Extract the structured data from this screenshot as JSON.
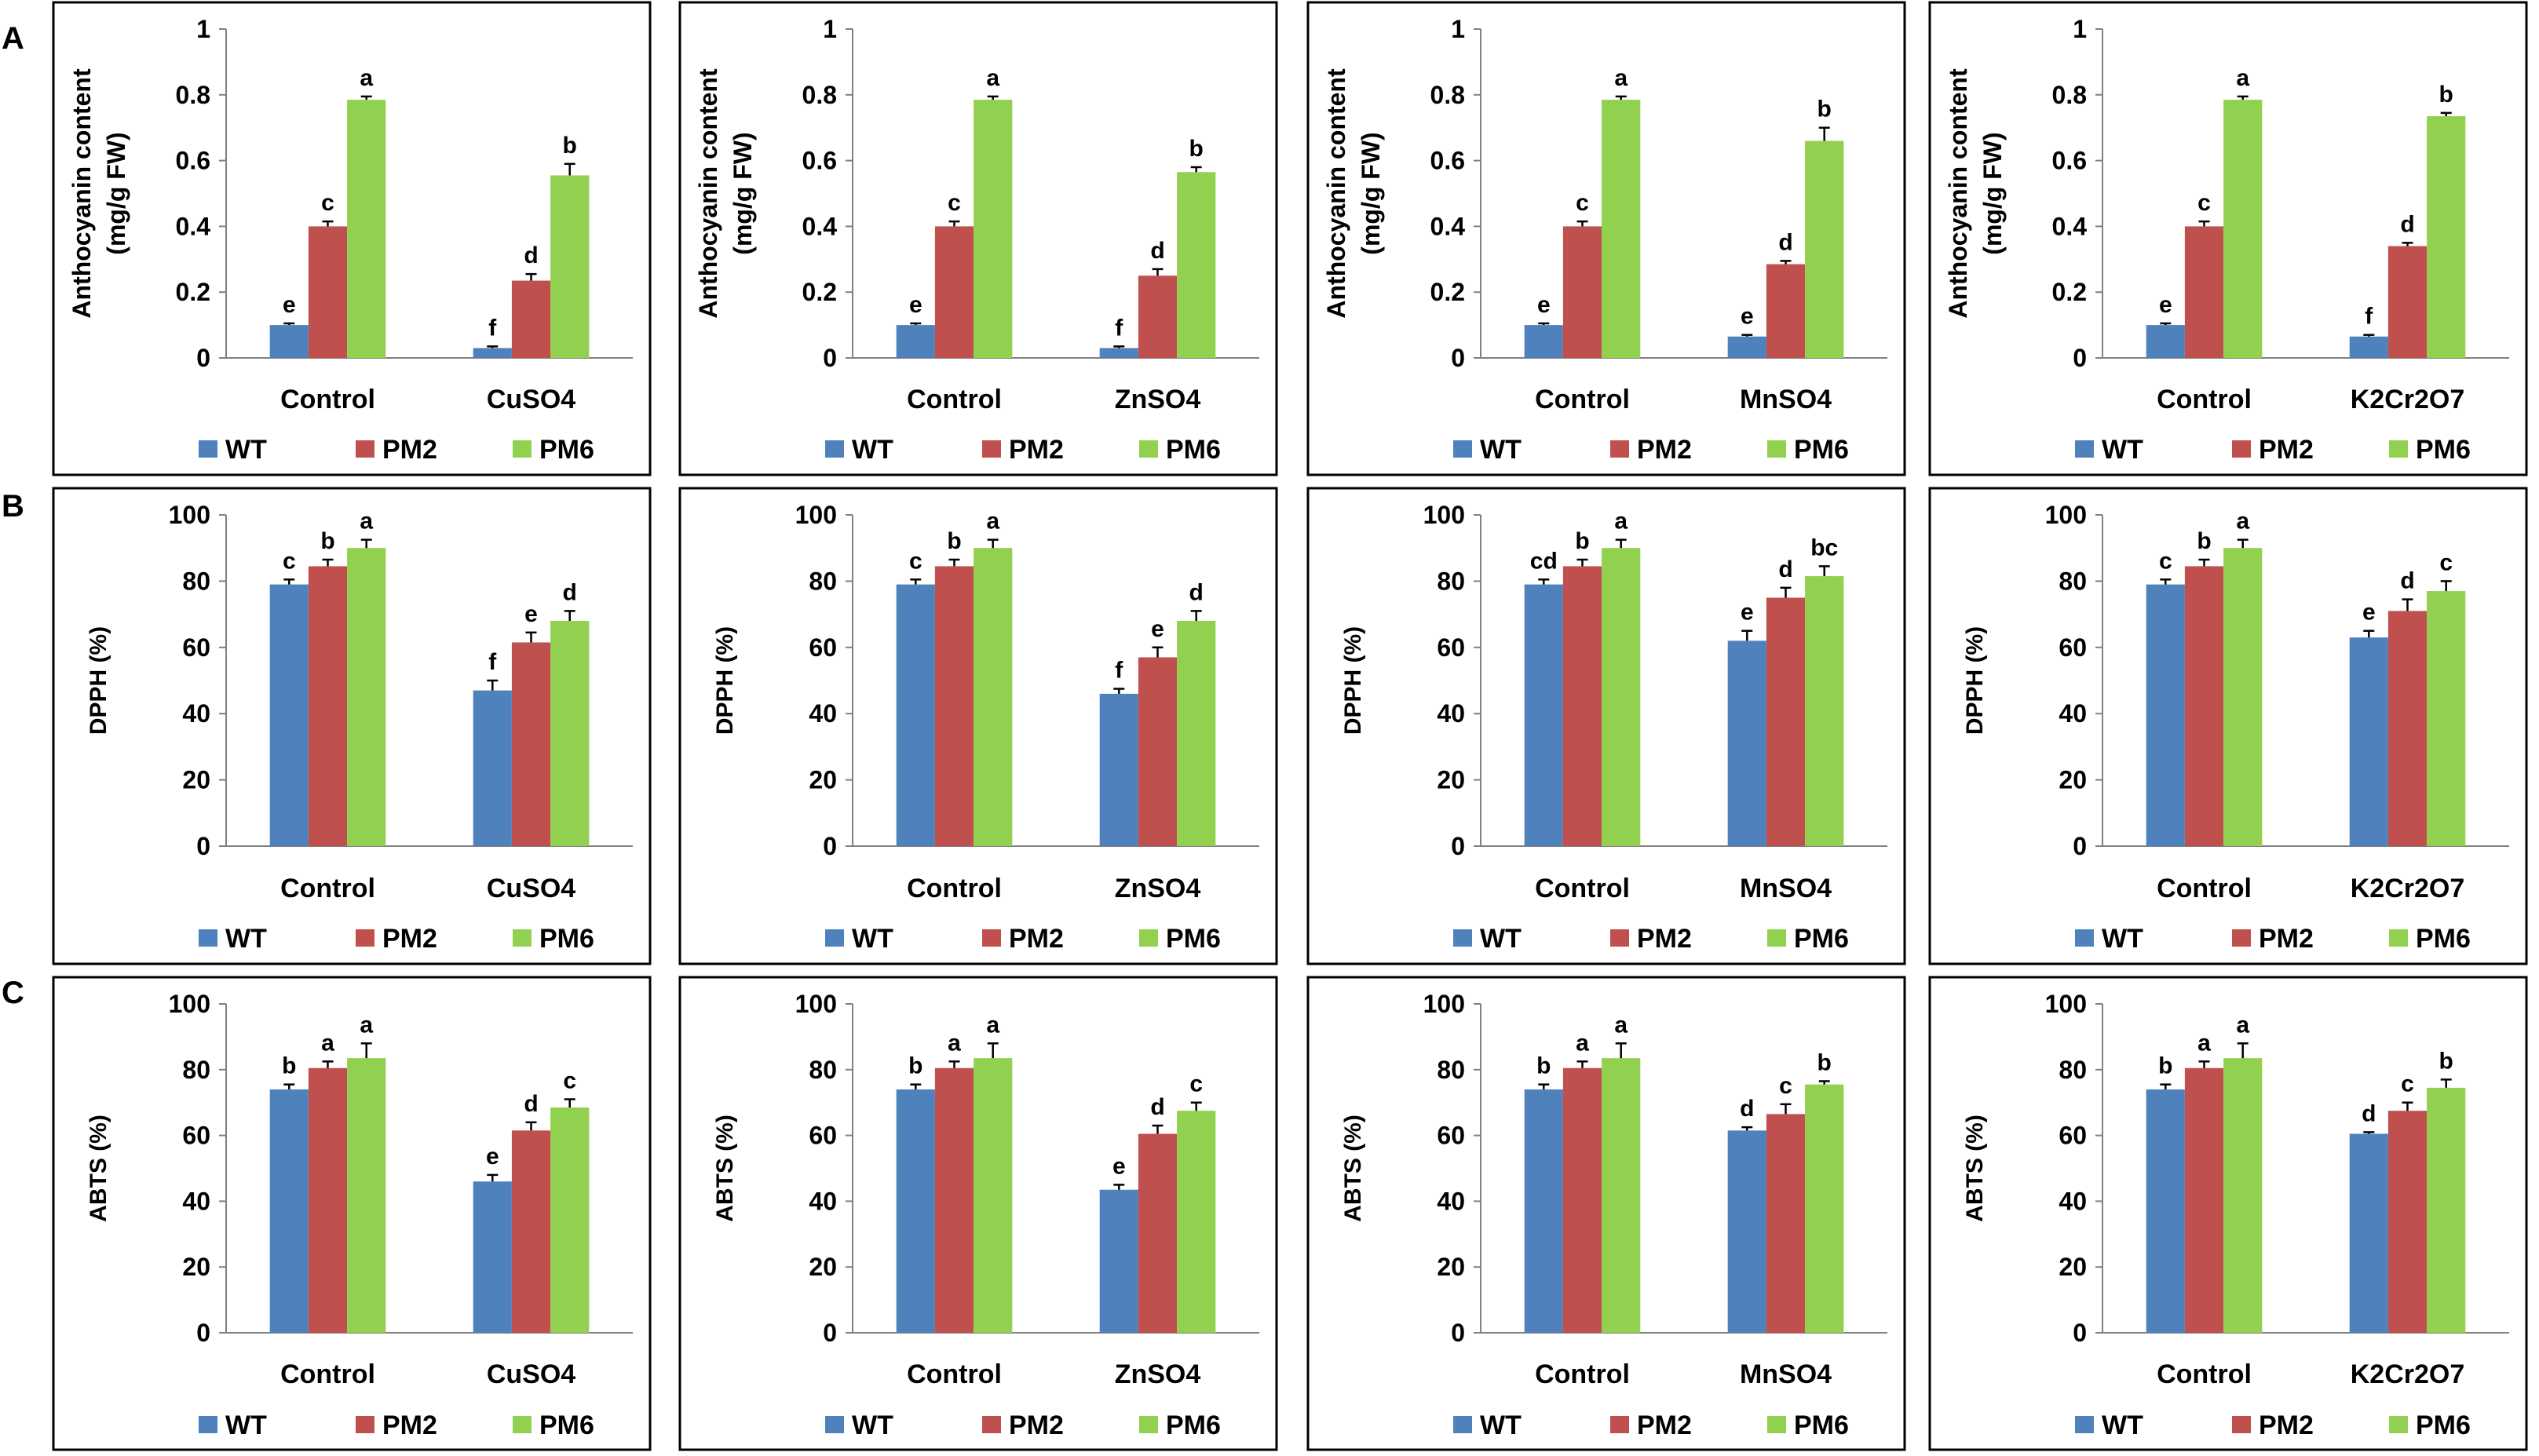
{
  "figure": {
    "row_labels": [
      "A",
      "B",
      "C"
    ],
    "legend": [
      "WT",
      "PM2",
      "PM6"
    ],
    "colors": {
      "WT": "#4f81bd",
      "PM2": "#c0504d",
      "PM6": "#92d050",
      "axis": "#808080",
      "frame": "#000000"
    }
  },
  "chart_data": [
    {
      "panel": "A-1",
      "type": "bar",
      "ylabel": [
        "Anthocyanin content",
        "(mg/g FW)"
      ],
      "ylim": [
        0,
        1
      ],
      "ytick_step": 0.2,
      "yticks": [
        "0",
        "0.2",
        "0.4",
        "0.6",
        "0.8",
        "1"
      ],
      "categories": [
        "Control",
        "CuSO4"
      ],
      "series": [
        {
          "name": "WT",
          "values": [
            0.1,
            0.03
          ],
          "errors": [
            0.005,
            0.005
          ],
          "letters": [
            "e",
            "f"
          ]
        },
        {
          "name": "PM2",
          "values": [
            0.4,
            0.235
          ],
          "errors": [
            0.015,
            0.02
          ],
          "letters": [
            "c",
            "d"
          ]
        },
        {
          "name": "PM6",
          "values": [
            0.785,
            0.555
          ],
          "errors": [
            0.01,
            0.035
          ],
          "letters": [
            "a",
            "b"
          ]
        }
      ]
    },
    {
      "panel": "A-2",
      "type": "bar",
      "ylabel": [
        "Anthocyanin content",
        "(mg/g FW)"
      ],
      "ylim": [
        0,
        1
      ],
      "ytick_step": 0.2,
      "yticks": [
        "0",
        "0.2",
        "0.4",
        "0.6",
        "0.8",
        "1"
      ],
      "categories": [
        "Control",
        "ZnSO4"
      ],
      "series": [
        {
          "name": "WT",
          "values": [
            0.1,
            0.03
          ],
          "errors": [
            0.005,
            0.005
          ],
          "letters": [
            "e",
            "f"
          ]
        },
        {
          "name": "PM2",
          "values": [
            0.4,
            0.25
          ],
          "errors": [
            0.015,
            0.02
          ],
          "letters": [
            "c",
            "d"
          ]
        },
        {
          "name": "PM6",
          "values": [
            0.785,
            0.565
          ],
          "errors": [
            0.01,
            0.015
          ],
          "letters": [
            "a",
            "b"
          ]
        }
      ]
    },
    {
      "panel": "A-3",
      "type": "bar",
      "ylabel": [
        "Anthocyanin content",
        "(mg/g FW)"
      ],
      "ylim": [
        0,
        1
      ],
      "ytick_step": 0.2,
      "yticks": [
        "0",
        "0.2",
        "0.4",
        "0.6",
        "0.8",
        "1"
      ],
      "categories": [
        "Control",
        "MnSO4"
      ],
      "series": [
        {
          "name": "WT",
          "values": [
            0.1,
            0.065
          ],
          "errors": [
            0.005,
            0.005
          ],
          "letters": [
            "e",
            "e"
          ]
        },
        {
          "name": "PM2",
          "values": [
            0.4,
            0.285
          ],
          "errors": [
            0.015,
            0.01
          ],
          "letters": [
            "c",
            "d"
          ]
        },
        {
          "name": "PM6",
          "values": [
            0.785,
            0.66
          ],
          "errors": [
            0.01,
            0.04
          ],
          "letters": [
            "a",
            "b"
          ]
        }
      ]
    },
    {
      "panel": "A-4",
      "type": "bar",
      "ylabel": [
        "Anthocyanin content",
        "(mg/g FW)"
      ],
      "ylim": [
        0,
        1
      ],
      "ytick_step": 0.2,
      "yticks": [
        "0",
        "0.2",
        "0.4",
        "0.6",
        "0.8",
        "1"
      ],
      "categories": [
        "Control",
        "K2Cr2O7"
      ],
      "series": [
        {
          "name": "WT",
          "values": [
            0.1,
            0.065
          ],
          "errors": [
            0.005,
            0.005
          ],
          "letters": [
            "e",
            "f"
          ]
        },
        {
          "name": "PM2",
          "values": [
            0.4,
            0.34
          ],
          "errors": [
            0.015,
            0.01
          ],
          "letters": [
            "c",
            "d"
          ]
        },
        {
          "name": "PM6",
          "values": [
            0.785,
            0.735
          ],
          "errors": [
            0.01,
            0.01
          ],
          "letters": [
            "a",
            "b"
          ]
        }
      ]
    },
    {
      "panel": "B-1",
      "type": "bar",
      "ylabel": [
        "DPPH (%)"
      ],
      "ylim": [
        0,
        100
      ],
      "ytick_step": 20,
      "yticks": [
        "0",
        "20",
        "40",
        "60",
        "80",
        "100"
      ],
      "categories": [
        "Control",
        "CuSO4"
      ],
      "series": [
        {
          "name": "WT",
          "values": [
            79,
            47
          ],
          "errors": [
            1.5,
            3
          ],
          "letters": [
            "c",
            "f"
          ]
        },
        {
          "name": "PM2",
          "values": [
            84.5,
            61.5
          ],
          "errors": [
            2,
            3
          ],
          "letters": [
            "b",
            "e"
          ]
        },
        {
          "name": "PM6",
          "values": [
            90,
            68
          ],
          "errors": [
            2.5,
            3
          ],
          "letters": [
            "a",
            "d"
          ]
        }
      ]
    },
    {
      "panel": "B-2",
      "type": "bar",
      "ylabel": [
        "DPPH (%)"
      ],
      "ylim": [
        0,
        100
      ],
      "ytick_step": 20,
      "yticks": [
        "0",
        "20",
        "40",
        "60",
        "80",
        "100"
      ],
      "categories": [
        "Control",
        "ZnSO4"
      ],
      "series": [
        {
          "name": "WT",
          "values": [
            79,
            46
          ],
          "errors": [
            1.5,
            1.5
          ],
          "letters": [
            "c",
            "f"
          ]
        },
        {
          "name": "PM2",
          "values": [
            84.5,
            57
          ],
          "errors": [
            2,
            3
          ],
          "letters": [
            "b",
            "e"
          ]
        },
        {
          "name": "PM6",
          "values": [
            90,
            68
          ],
          "errors": [
            2.5,
            3
          ],
          "letters": [
            "a",
            "d"
          ]
        }
      ]
    },
    {
      "panel": "B-3",
      "type": "bar",
      "ylabel": [
        "DPPH (%)"
      ],
      "ylim": [
        0,
        100
      ],
      "ytick_step": 20,
      "yticks": [
        "0",
        "20",
        "40",
        "60",
        "80",
        "100"
      ],
      "categories": [
        "Control",
        "MnSO4"
      ],
      "series": [
        {
          "name": "WT",
          "values": [
            79,
            62
          ],
          "errors": [
            1.5,
            3
          ],
          "letters": [
            "cd",
            "e"
          ]
        },
        {
          "name": "PM2",
          "values": [
            84.5,
            75
          ],
          "errors": [
            2,
            3
          ],
          "letters": [
            "b",
            "d"
          ]
        },
        {
          "name": "PM6",
          "values": [
            90,
            81.5
          ],
          "errors": [
            2.5,
            3
          ],
          "letters": [
            "a",
            "bc"
          ]
        }
      ]
    },
    {
      "panel": "B-4",
      "type": "bar",
      "ylabel": [
        "DPPH (%)"
      ],
      "ylim": [
        0,
        100
      ],
      "ytick_step": 20,
      "yticks": [
        "0",
        "20",
        "40",
        "60",
        "80",
        "100"
      ],
      "categories": [
        "Control",
        "K2Cr2O7"
      ],
      "series": [
        {
          "name": "WT",
          "values": [
            79,
            63
          ],
          "errors": [
            1.5,
            2
          ],
          "letters": [
            "c",
            "e"
          ]
        },
        {
          "name": "PM2",
          "values": [
            84.5,
            71
          ],
          "errors": [
            2,
            3.5
          ],
          "letters": [
            "b",
            "d"
          ]
        },
        {
          "name": "PM6",
          "values": [
            90,
            77
          ],
          "errors": [
            2.5,
            3
          ],
          "letters": [
            "a",
            "c"
          ]
        }
      ]
    },
    {
      "panel": "C-1",
      "type": "bar",
      "ylabel": [
        "ABTS (%)"
      ],
      "ylim": [
        0,
        100
      ],
      "ytick_step": 20,
      "yticks": [
        "0",
        "20",
        "40",
        "60",
        "80",
        "100"
      ],
      "categories": [
        "Control",
        "CuSO4"
      ],
      "series": [
        {
          "name": "WT",
          "values": [
            74,
            46
          ],
          "errors": [
            1.5,
            2
          ],
          "letters": [
            "b",
            "e"
          ]
        },
        {
          "name": "PM2",
          "values": [
            80.5,
            61.5
          ],
          "errors": [
            2,
            2.5
          ],
          "letters": [
            "a",
            "d"
          ]
        },
        {
          "name": "PM6",
          "values": [
            83.5,
            68.5
          ],
          "errors": [
            4.5,
            2.5
          ],
          "letters": [
            "a",
            "c"
          ]
        }
      ]
    },
    {
      "panel": "C-2",
      "type": "bar",
      "ylabel": [
        "ABTS (%)"
      ],
      "ylim": [
        0,
        100
      ],
      "ytick_step": 20,
      "yticks": [
        "0",
        "20",
        "40",
        "60",
        "80",
        "100"
      ],
      "categories": [
        "Control",
        "ZnSO4"
      ],
      "series": [
        {
          "name": "WT",
          "values": [
            74,
            43.5
          ],
          "errors": [
            1.5,
            1.5
          ],
          "letters": [
            "b",
            "e"
          ]
        },
        {
          "name": "PM2",
          "values": [
            80.5,
            60.5
          ],
          "errors": [
            2,
            2.5
          ],
          "letters": [
            "a",
            "d"
          ]
        },
        {
          "name": "PM6",
          "values": [
            83.5,
            67.5
          ],
          "errors": [
            4.5,
            2.5
          ],
          "letters": [
            "a",
            "c"
          ]
        }
      ]
    },
    {
      "panel": "C-3",
      "type": "bar",
      "ylabel": [
        "ABTS (%)"
      ],
      "ylim": [
        0,
        100
      ],
      "ytick_step": 20,
      "yticks": [
        "0",
        "20",
        "40",
        "60",
        "80",
        "100"
      ],
      "categories": [
        "Control",
        "MnSO4"
      ],
      "series": [
        {
          "name": "WT",
          "values": [
            74,
            61.5
          ],
          "errors": [
            1.5,
            1
          ],
          "letters": [
            "b",
            "d"
          ]
        },
        {
          "name": "PM2",
          "values": [
            80.5,
            66.5
          ],
          "errors": [
            2,
            3
          ],
          "letters": [
            "a",
            "c"
          ]
        },
        {
          "name": "PM6",
          "values": [
            83.5,
            75.5
          ],
          "errors": [
            4.5,
            1
          ],
          "letters": [
            "a",
            "b"
          ]
        }
      ]
    },
    {
      "panel": "C-4",
      "type": "bar",
      "ylabel": [
        "ABTS (%)"
      ],
      "ylim": [
        0,
        100
      ],
      "ytick_step": 20,
      "yticks": [
        "0",
        "20",
        "40",
        "60",
        "80",
        "100"
      ],
      "categories": [
        "Control",
        "K2Cr2O7"
      ],
      "series": [
        {
          "name": "WT",
          "values": [
            74,
            60.5
          ],
          "errors": [
            1.5,
            0.5
          ],
          "letters": [
            "b",
            "d"
          ]
        },
        {
          "name": "PM2",
          "values": [
            80.5,
            67.5
          ],
          "errors": [
            2,
            2.5
          ],
          "letters": [
            "a",
            "c"
          ]
        },
        {
          "name": "PM6",
          "values": [
            83.5,
            74.5
          ],
          "errors": [
            4.5,
            2.5
          ],
          "letters": [
            "a",
            "b"
          ]
        }
      ]
    }
  ]
}
